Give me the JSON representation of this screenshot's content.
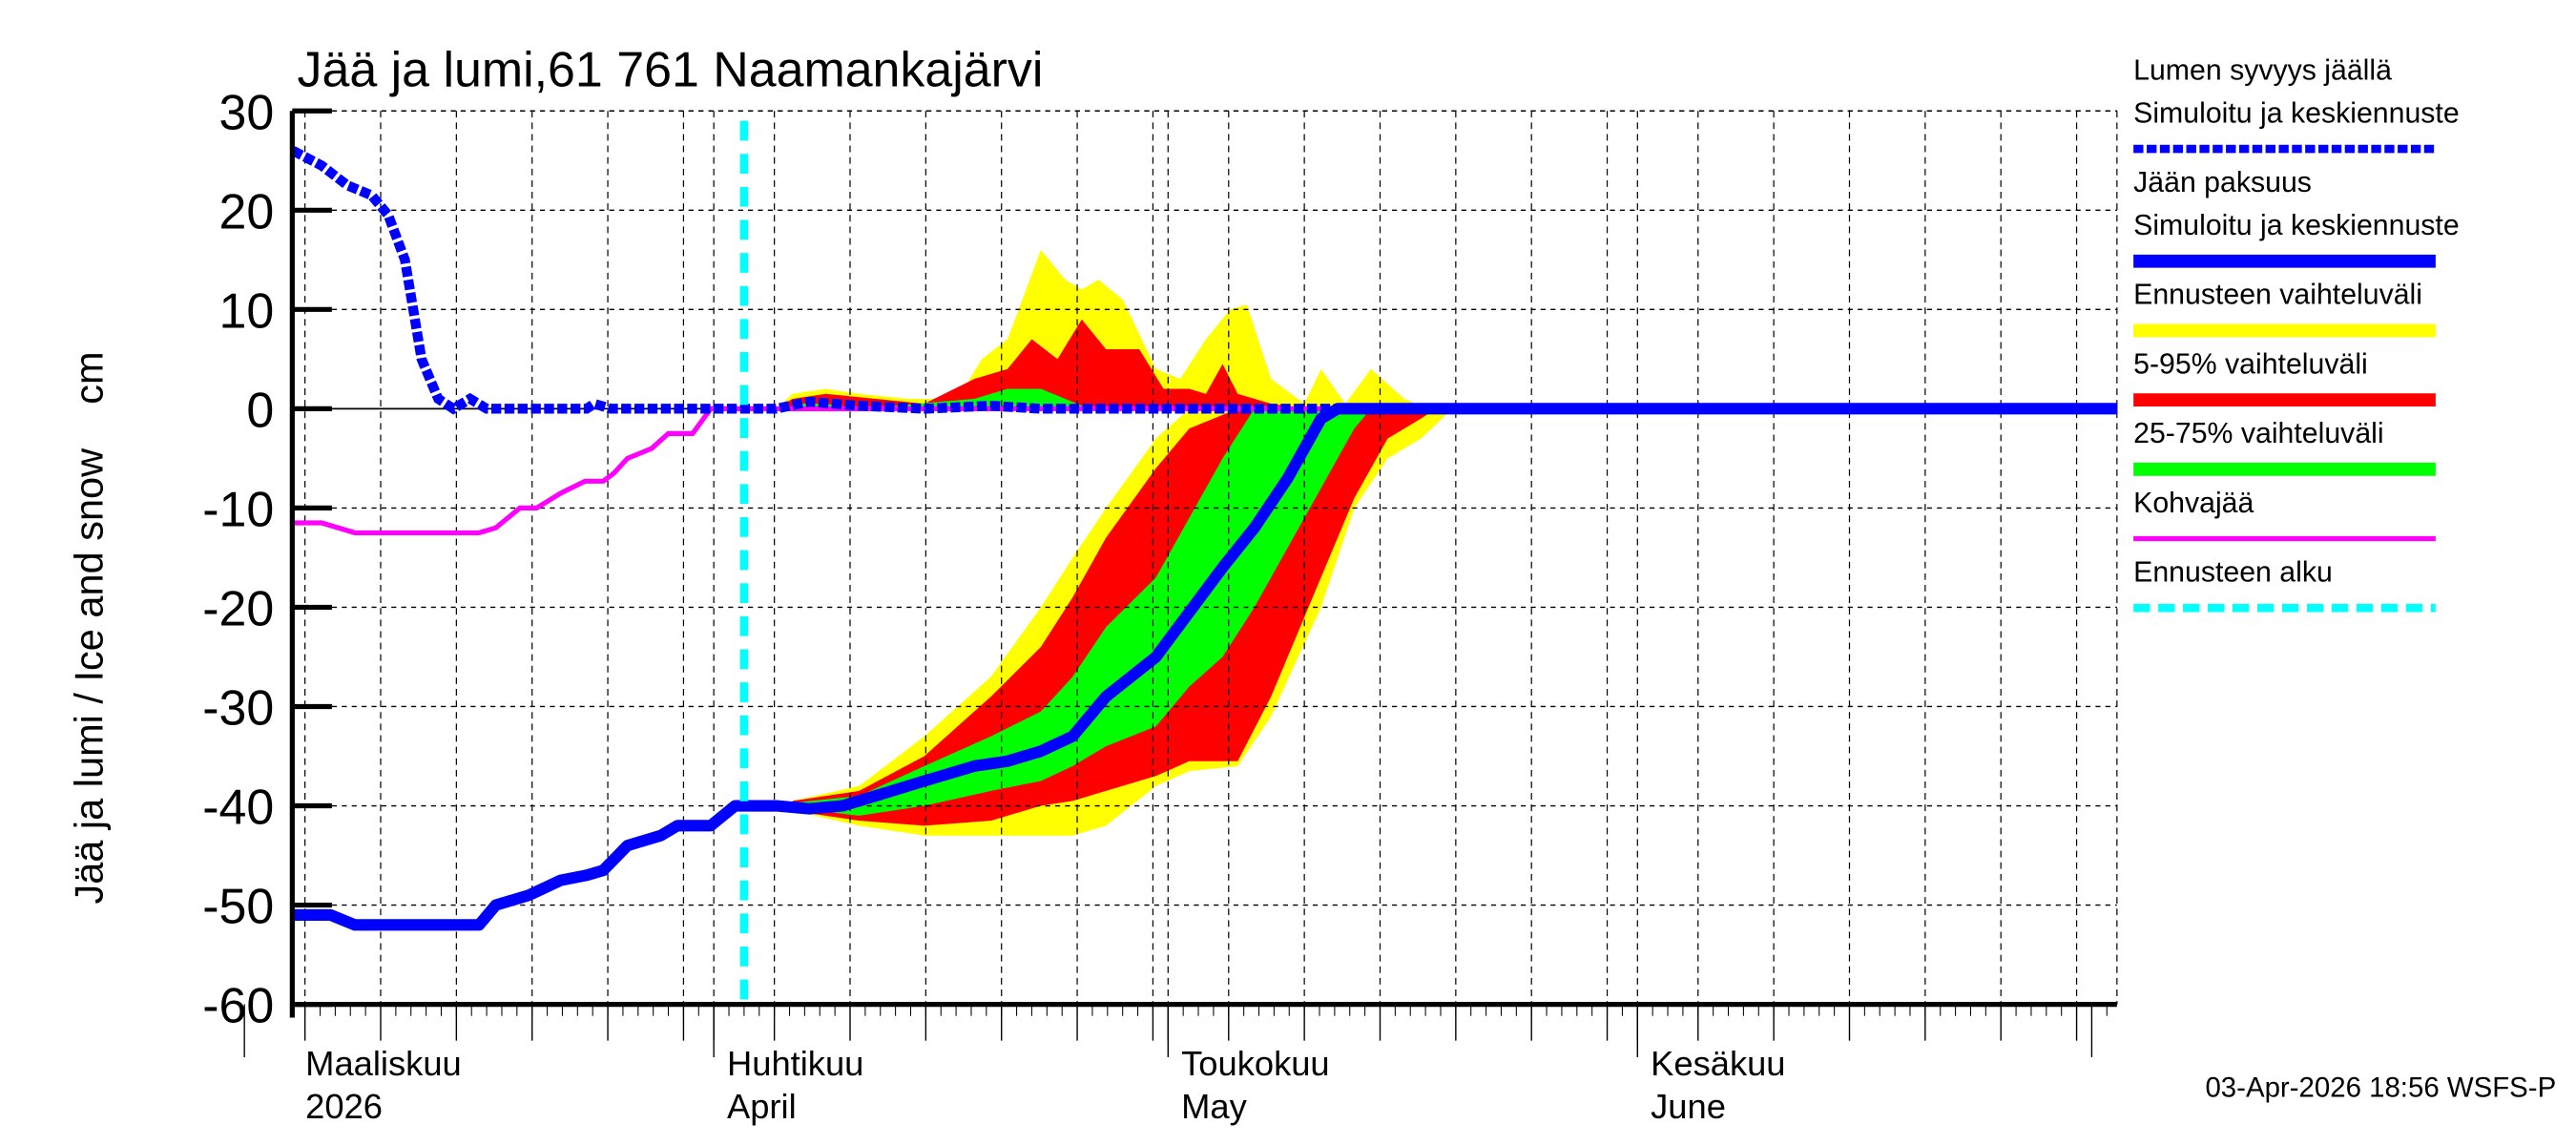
{
  "chart_data": {
    "type": "area",
    "title": "Jää ja lumi,61 761 Naamankajärvi",
    "ylabel": "Jää ja lumi / Ice and snow    cm",
    "xlabel": "",
    "x_unit": "days since 2026-03-01",
    "xlim": [
      3.2,
      123.7
    ],
    "ylim": [
      -60,
      30
    ],
    "yticks": [
      30,
      20,
      10,
      0,
      -10,
      -20,
      -30,
      -40,
      -50,
      -60
    ],
    "grid": true,
    "legend_position": "right",
    "months": [
      {
        "day": 0,
        "label_fi": "Maaliskuu",
        "label_en": "2026"
      },
      {
        "day": 31,
        "label_fi": "Huhtikuu",
        "label_en": "April"
      },
      {
        "day": 61,
        "label_fi": "Toukokuu",
        "label_en": "May"
      },
      {
        "day": 92,
        "label_fi": "Kesäkuu",
        "label_en": "June"
      },
      {
        "day": 122
      }
    ],
    "forecast_start_day": 33,
    "series": {
      "snow": {
        "name": "Lumen syvyys jäällä",
        "sub": "Simuloitu ja keskiennuste",
        "color": "#0000ff",
        "points": [
          [
            3.2,
            26
          ],
          [
            5.1,
            24.5
          ],
          [
            6.8,
            22.5
          ],
          [
            8.4,
            21.5
          ],
          [
            9.5,
            19.5
          ],
          [
            10.6,
            15
          ],
          [
            11.7,
            5
          ],
          [
            12.8,
            1
          ],
          [
            13.8,
            0
          ],
          [
            14.9,
            1
          ],
          [
            16.0,
            0
          ],
          [
            22.6,
            0
          ],
          [
            23.1,
            0.5
          ],
          [
            24.2,
            0
          ],
          [
            35.1,
            0
          ],
          [
            37.3,
            0.7
          ],
          [
            40.6,
            0.3
          ],
          [
            44.9,
            0
          ],
          [
            49.3,
            0.3
          ],
          [
            52.6,
            0
          ],
          [
            81.5,
            0
          ]
        ]
      },
      "ice": {
        "name": "Jään paksuus",
        "sub": "Simuloitu ja keskiennuste",
        "color": "#0000ff",
        "points": [
          [
            3.2,
            -51
          ],
          [
            5.7,
            -51
          ],
          [
            7.3,
            -52
          ],
          [
            15.5,
            -52
          ],
          [
            16.6,
            -50
          ],
          [
            18.8,
            -49
          ],
          [
            20.9,
            -47.5
          ],
          [
            22.6,
            -47
          ],
          [
            23.7,
            -46.5
          ],
          [
            25.3,
            -44
          ],
          [
            27.5,
            -43
          ],
          [
            28.6,
            -42
          ],
          [
            30.8,
            -42
          ],
          [
            32.4,
            -40
          ],
          [
            35.1,
            -40
          ],
          [
            37.3,
            -40.3
          ],
          [
            39.5,
            -40
          ],
          [
            41.7,
            -39
          ],
          [
            44.9,
            -37.5
          ],
          [
            48.2,
            -36
          ],
          [
            50.4,
            -35.5
          ],
          [
            52.6,
            -34.5
          ],
          [
            54.7,
            -33
          ],
          [
            56.9,
            -29
          ],
          [
            60.2,
            -25
          ],
          [
            62.4,
            -20.5
          ],
          [
            64.6,
            -16
          ],
          [
            66.7,
            -12
          ],
          [
            68.9,
            -7
          ],
          [
            71.1,
            -1
          ],
          [
            72.2,
            0
          ],
          [
            123.7,
            0
          ]
        ]
      },
      "slush": {
        "name": "Kohvajää",
        "color": "#ff00ff",
        "points": [
          [
            3.2,
            -11.5
          ],
          [
            5.1,
            -11.5
          ],
          [
            7.3,
            -12.5
          ],
          [
            15.5,
            -12.5
          ],
          [
            16.6,
            -12
          ],
          [
            18.2,
            -10
          ],
          [
            19.3,
            -10
          ],
          [
            20.9,
            -8.5
          ],
          [
            22.5,
            -7.3
          ],
          [
            23.7,
            -7.3
          ],
          [
            24.4,
            -6.5
          ],
          [
            25.3,
            -5
          ],
          [
            26.9,
            -4
          ],
          [
            28.0,
            -2.5
          ],
          [
            29.6,
            -2.5
          ],
          [
            30.8,
            0
          ],
          [
            123.7,
            0
          ]
        ]
      }
    },
    "bands": [
      {
        "name": "Ennusteen vaihteluväli",
        "color": "#ffff00",
        "part": "ice",
        "x": [
          36.2,
          40.6,
          44.9,
          49.3,
          52.6,
          54.7,
          56.9,
          60.2,
          62.4,
          65.6,
          67.8,
          71.1,
          73.3,
          75.5,
          77.7,
          79.8
        ],
        "upper": [
          -39.5,
          -38,
          -33,
          -27,
          -20,
          -15,
          -10,
          -3,
          0,
          0,
          0,
          0,
          0,
          0,
          0,
          0
        ],
        "lower": [
          -40.5,
          -42,
          -43,
          -43,
          -43,
          -43,
          -42,
          -38,
          -36.5,
          -36,
          -31,
          -20,
          -10,
          -5,
          -3,
          0
        ]
      },
      {
        "name": "5-95% vaihteluväli",
        "color": "#ff0000",
        "part": "ice",
        "x": [
          36.2,
          40.6,
          44.9,
          49.3,
          52.6,
          54.7,
          56.9,
          60.2,
          62.4,
          65.6,
          67.8,
          71.1,
          73.3,
          75.5,
          77.7,
          78.7
        ],
        "upper": [
          -39.5,
          -38.5,
          -35,
          -29,
          -24,
          -19,
          -13,
          -6,
          -2,
          0,
          0,
          0,
          0,
          0,
          0,
          0
        ],
        "lower": [
          -40.5,
          -41.5,
          -42,
          -41.5,
          -40,
          -39.5,
          -38.5,
          -37,
          -35.5,
          -35.5,
          -29,
          -17,
          -9,
          -3,
          -1,
          0
        ]
      },
      {
        "name": "25-75% vaihteluväli",
        "color": "#00ff00",
        "part": "ice",
        "x": [
          36.2,
          40.6,
          44.9,
          49.3,
          52.6,
          54.7,
          56.9,
          60.2,
          62.4,
          64.6,
          66.7,
          68.9,
          71.1,
          73.3,
          74.4
        ],
        "upper": [
          -39.7,
          -39,
          -36,
          -33,
          -30.5,
          -27,
          -22,
          -17,
          -11,
          -5,
          0,
          0,
          0,
          0,
          0
        ],
        "lower": [
          -40.2,
          -41,
          -40,
          -38.5,
          -37.5,
          -36,
          -34,
          -32,
          -28,
          -25,
          -20,
          -14,
          -8,
          -2,
          0
        ]
      },
      {
        "name": "Ennusteen vaihteluväli",
        "color": "#ffff00",
        "part": "snow",
        "x": [
          35.1,
          36.2,
          38.4,
          40.6,
          43.8,
          47.1,
          48.7,
          50.4,
          52.6,
          54.2,
          55.3,
          56.4,
          58.0,
          60.2,
          61.8,
          63.5,
          65.1,
          66.2,
          67.8,
          70.0,
          71.1,
          72.7,
          74.4,
          76.6,
          78.2
        ],
        "upper": [
          0,
          1.5,
          2,
          1.5,
          1,
          1,
          5,
          7,
          16,
          13,
          12,
          13,
          11,
          4,
          3,
          7,
          10,
          10.5,
          3,
          0.5,
          4,
          0.5,
          4,
          1,
          0
        ],
        "lower": [
          0,
          0,
          0,
          0,
          0,
          0,
          0,
          0,
          0,
          0,
          0,
          0,
          0,
          0,
          0,
          0,
          0,
          0,
          0,
          0,
          0,
          0,
          0,
          0,
          0
        ]
      },
      {
        "name": "5-95% vaihteluväli",
        "color": "#ff0000",
        "part": "snow",
        "x": [
          35.1,
          36.2,
          38.4,
          41.7,
          44.9,
          48.2,
          50.4,
          52.0,
          53.7,
          55.3,
          56.9,
          59.1,
          60.7,
          62.4,
          63.5,
          64.6,
          65.6,
          67.8,
          70.0
        ],
        "upper": [
          0,
          1,
          1.5,
          1,
          0.5,
          3,
          4,
          7,
          5,
          9,
          6,
          6,
          2,
          2,
          1.5,
          4.5,
          1.5,
          0.5,
          0
        ],
        "lower": [
          0,
          0,
          0,
          0,
          0,
          0,
          0,
          0,
          0,
          0,
          0,
          0,
          0,
          0,
          0,
          0,
          0,
          0,
          0
        ]
      },
      {
        "name": "25-75% vaihteluväli",
        "color": "#00ff00",
        "part": "snow",
        "x": [
          36.2,
          38.4,
          40.6,
          48.2,
          50.4,
          52.6,
          54.2,
          55.8
        ],
        "upper": [
          0.5,
          0.5,
          0,
          1,
          2,
          2,
          1,
          0
        ],
        "lower": [
          0,
          0,
          0,
          0,
          0,
          0,
          0,
          0
        ]
      }
    ],
    "legend": [
      {
        "lines": [
          "Lumen syvyys jäällä",
          "Simuloitu ja keskiennuste"
        ],
        "color": "#0000ff",
        "style": "dashed"
      },
      {
        "lines": [
          "Jään paksuus",
          "Simuloitu ja keskiennuste"
        ],
        "color": "#0000ff",
        "style": "solid"
      },
      {
        "lines": [
          "Ennusteen vaihteluväli"
        ],
        "color": "#ffff00",
        "style": "solid"
      },
      {
        "lines": [
          "5-95% vaihteluväli"
        ],
        "color": "#ff0000",
        "style": "solid"
      },
      {
        "lines": [
          "25-75% vaihteluväli"
        ],
        "color": "#00ff00",
        "style": "solid"
      },
      {
        "lines": [
          "Kohvajää"
        ],
        "color": "#ff00ff",
        "style": "thin"
      },
      {
        "lines": [
          "Ennusteen alku"
        ],
        "color": "#00ffff",
        "style": "dotted"
      }
    ],
    "footer": "03-Apr-2026 18:56 WSFS-P"
  }
}
